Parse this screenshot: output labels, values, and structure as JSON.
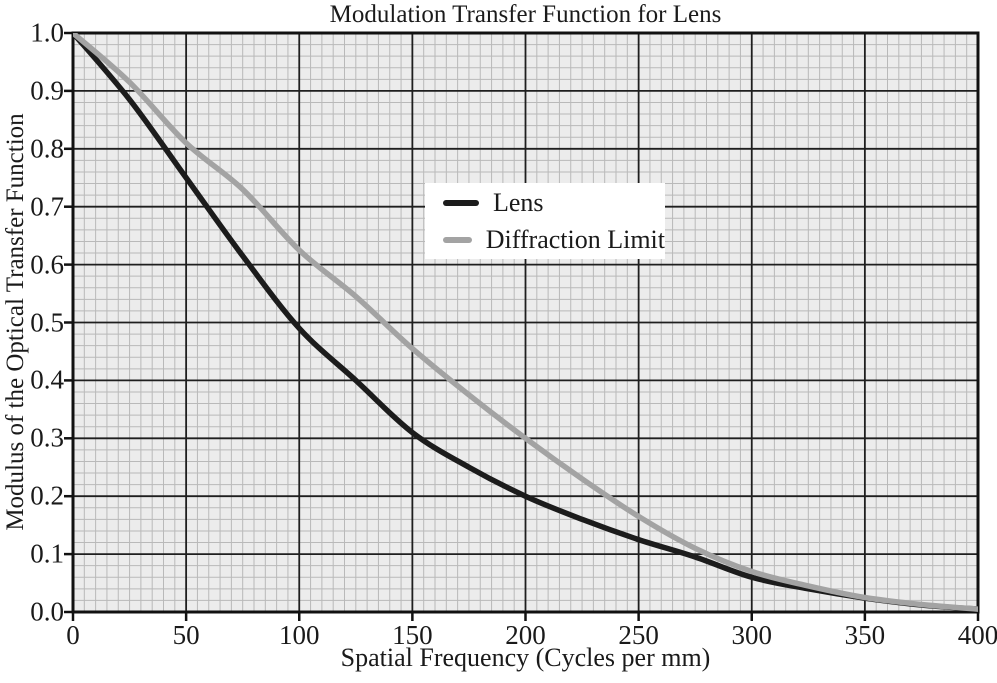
{
  "chart_data": {
    "type": "line",
    "title": "Modulation Transfer Function for Lens",
    "xlabel": "Spatial Frequency (Cycles per mm)",
    "ylabel": "Modulus of the Optical Transfer Function",
    "xlim": [
      0,
      400
    ],
    "ylim": [
      0,
      1.0
    ],
    "x_ticks": [
      0,
      50,
      100,
      150,
      200,
      250,
      300,
      350,
      400
    ],
    "x_tick_labels": [
      "0",
      "50",
      "100",
      "150",
      "200",
      "250",
      "300",
      "350",
      "400"
    ],
    "y_ticks": [
      0,
      0.1,
      0.2,
      0.3,
      0.4,
      0.5,
      0.6,
      0.7,
      0.8,
      0.9,
      1.0
    ],
    "y_tick_labels": [
      "0.0",
      "0.1",
      "0.2",
      "0.3",
      "0.4",
      "0.5",
      "0.6",
      "0.7",
      "0.8",
      "0.9",
      "1.0"
    ],
    "x_minor_step": 5,
    "y_minor_step": 0.02,
    "grid": "major and minor (graph-paper style), on",
    "legend_position": "inside upper-middle-left, white box, no border",
    "x": [
      0,
      25,
      50,
      75,
      100,
      125,
      150,
      175,
      200,
      225,
      250,
      275,
      300,
      325,
      350,
      375,
      400
    ],
    "series": [
      {
        "name": "Lens",
        "color": "#1c1c1c",
        "values": [
          1.0,
          0.885,
          0.75,
          0.615,
          0.49,
          0.4,
          0.31,
          0.25,
          0.2,
          0.16,
          0.125,
          0.095,
          0.06,
          0.04,
          0.024,
          0.012,
          0.005
        ]
      },
      {
        "name": "Diffraction Limit",
        "color": "#a3a3a3",
        "values": [
          1.0,
          0.915,
          0.81,
          0.73,
          0.625,
          0.545,
          0.455,
          0.375,
          0.3,
          0.23,
          0.165,
          0.11,
          0.07,
          0.045,
          0.025,
          0.013,
          0.005
        ]
      }
    ],
    "colors": {
      "plot_background": "#ececec",
      "minor_grid": "#b9b9b9",
      "major_grid": "#1f1f1f",
      "axis_frame": "#111111",
      "text": "#1a1a1a"
    }
  }
}
